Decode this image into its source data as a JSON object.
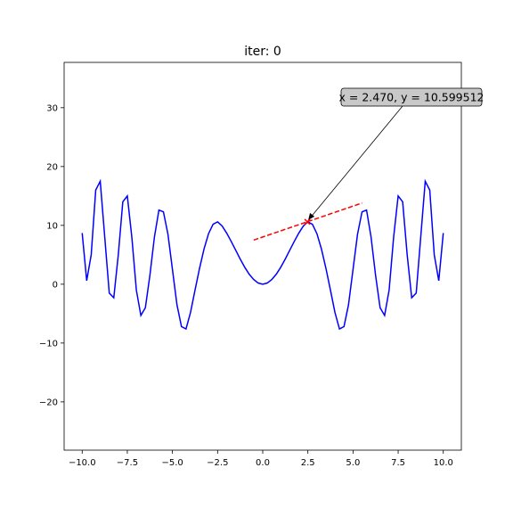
{
  "chart_data": {
    "type": "line",
    "title": "iter:   0",
    "x": [
      -10,
      -9.75,
      -9.5,
      -9.25,
      -9,
      -8.75,
      -8.5,
      -8.25,
      -8,
      -7.75,
      -7.5,
      -7.25,
      -7,
      -6.75,
      -6.5,
      -6.25,
      -6,
      -5.75,
      -5.5,
      -5.25,
      -5,
      -4.75,
      -4.5,
      -4.25,
      -4,
      -3.75,
      -3.5,
      -3.25,
      -3,
      -2.75,
      -2.5,
      -2.25,
      -2,
      -1.75,
      -1.5,
      -1.25,
      -1,
      -0.75,
      -0.5,
      -0.25,
      0,
      0.25,
      0.5,
      0.75,
      1,
      1.25,
      1.5,
      1.75,
      2,
      2.25,
      2.5,
      2.75,
      3,
      3.25,
      3.5,
      3.75,
      4,
      4.25,
      4.5,
      4.75,
      5,
      5.25,
      5.5,
      5.75,
      6,
      6.25,
      6.5,
      6.75,
      7,
      7.25,
      7.5,
      7.75,
      8,
      8.25,
      8.5,
      8.75,
      9,
      9.25,
      9.5,
      9.75,
      10
    ],
    "series": [
      {
        "color": "#0000ff",
        "values": [
          8.7,
          0.6,
          5.0,
          16.0,
          17.5,
          8.0,
          -1.5,
          -2.3,
          5.0,
          14.0,
          15.0,
          8.0,
          -1.0,
          -5.3,
          -4.0,
          1.5,
          8.0,
          12.6,
          12.3,
          8.5,
          2.5,
          -3.5,
          -7.2,
          -7.6,
          -4.8,
          -1.0,
          2.7,
          6.0,
          8.6,
          10.2,
          10.6,
          9.9,
          8.7,
          7.3,
          5.8,
          4.3,
          2.9,
          1.7,
          0.8,
          0.2,
          0,
          0.2,
          0.8,
          1.7,
          2.9,
          4.3,
          5.8,
          7.3,
          8.7,
          9.9,
          10.6,
          10.2,
          8.6,
          6.0,
          2.7,
          -1.0,
          -4.8,
          -7.6,
          -7.2,
          -3.5,
          2.5,
          8.5,
          12.3,
          12.6,
          8.0,
          1.5,
          -4.0,
          -5.3,
          -1.0,
          8.0,
          15.0,
          14.0,
          5.0,
          -2.3,
          -1.5,
          8.0,
          17.5,
          16.0,
          5.0,
          0.6,
          8.7
        ]
      }
    ],
    "tangent": {
      "color": "#ff0000",
      "x": [
        -0.5,
        5.5
      ],
      "y": [
        7.5,
        13.8
      ]
    },
    "point": {
      "color": "#ff0000",
      "x": 2.47,
      "y": 10.599512
    },
    "annotation": "x = 2.470, y = 10.599512",
    "xlim": [
      -11,
      11
    ],
    "ylim": [
      -28.2,
      37.7
    ],
    "xticks": [
      {
        "value": -10,
        "label": "−10.0"
      },
      {
        "value": -7.5,
        "label": "−7.5"
      },
      {
        "value": -5,
        "label": "−5.0"
      },
      {
        "value": -2.5,
        "label": "−2.5"
      },
      {
        "value": 0,
        "label": "0.0"
      },
      {
        "value": 2.5,
        "label": "2.5"
      },
      {
        "value": 5,
        "label": "5.0"
      },
      {
        "value": 7.5,
        "label": "7.5"
      },
      {
        "value": 10,
        "label": "10.0"
      }
    ],
    "yticks": [
      {
        "value": -20,
        "label": "−20"
      },
      {
        "value": -10,
        "label": "−10"
      },
      0,
      10,
      20,
      30
    ]
  }
}
